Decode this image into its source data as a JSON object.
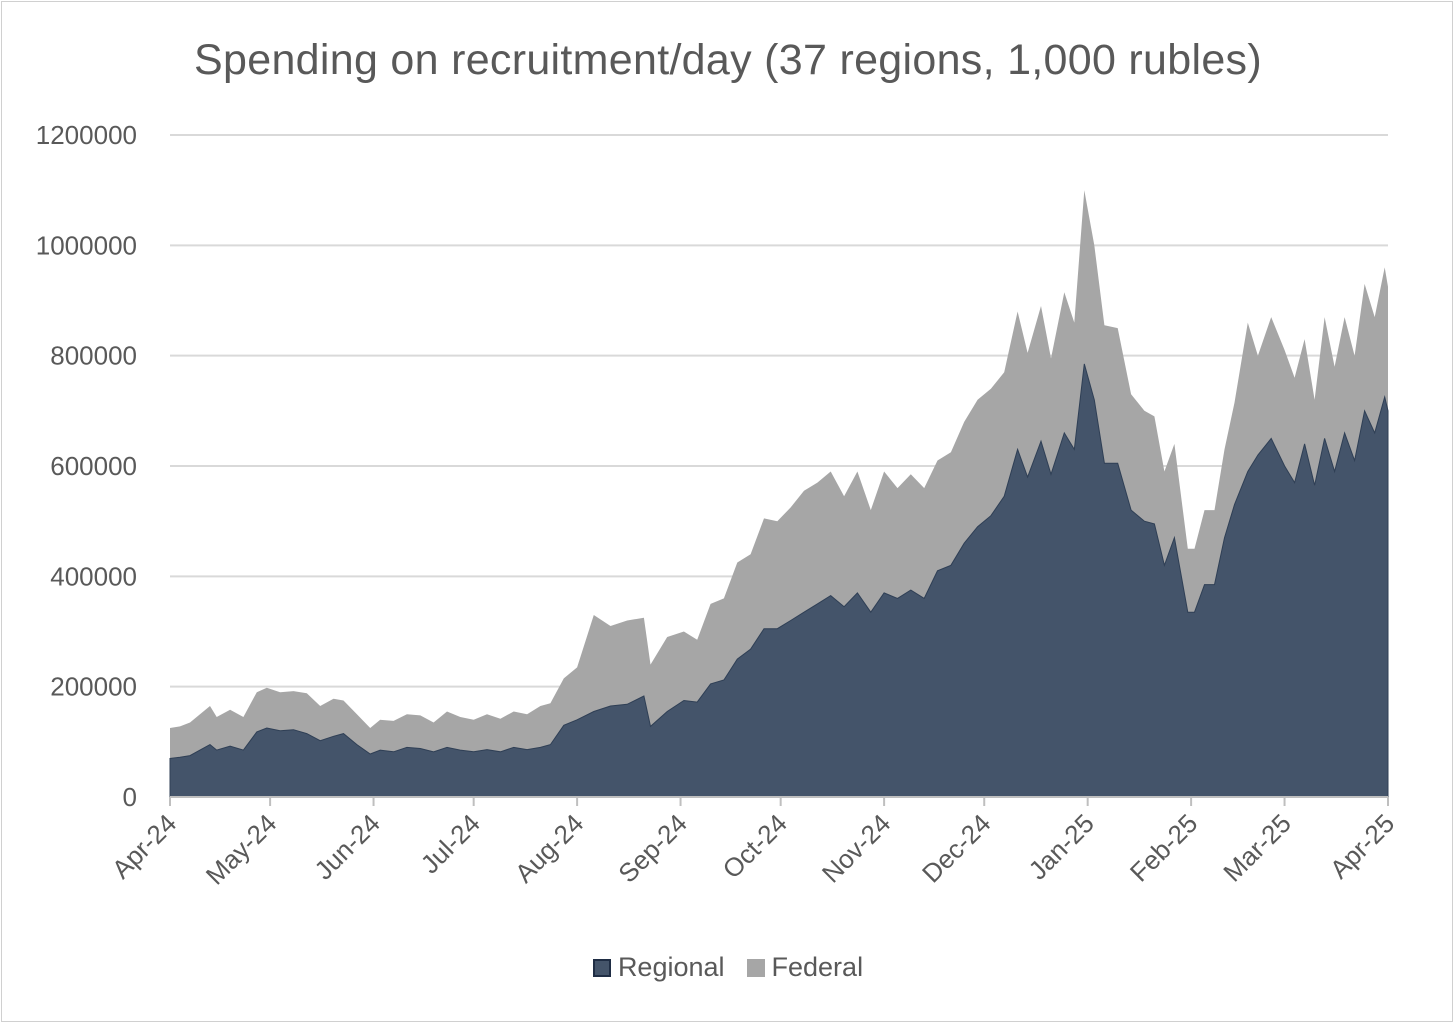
{
  "chart_data": {
    "type": "area",
    "stacked": true,
    "title": "Spending on recruitment/day (37 regions, 1,000 rubles)",
    "xlabel": "",
    "ylabel": "",
    "ylim": [
      0,
      1200000
    ],
    "yticks": [
      0,
      200000,
      400000,
      600000,
      800000,
      1000000,
      1200000
    ],
    "ytick_labels": [
      "0",
      "200000",
      "400000",
      "600000",
      "800000",
      "1000000",
      "1200000"
    ],
    "grid": true,
    "legend_position": "bottom",
    "x_range": [
      "2024-04-01",
      "2025-04-01"
    ],
    "xtick_labels": [
      "Apr-24",
      "May-24",
      "Jun-24",
      "Jul-24",
      "Aug-24",
      "Sep-24",
      "Oct-24",
      "Nov-24",
      "Dec-24",
      "Jan-25",
      "Feb-25",
      "Mar-25",
      "Apr-25"
    ],
    "xtick_dates": [
      "2024-04-01",
      "2024-05-01",
      "2024-06-01",
      "2024-07-01",
      "2024-08-01",
      "2024-09-01",
      "2024-10-01",
      "2024-11-01",
      "2024-12-01",
      "2025-01-01",
      "2025-02-01",
      "2025-03-01",
      "2025-04-01"
    ],
    "series": [
      {
        "name": "Regional",
        "color": "#44546a",
        "points": [
          [
            "2024-04-01",
            70000
          ],
          [
            "2024-04-04",
            72000
          ],
          [
            "2024-04-07",
            75000
          ],
          [
            "2024-04-10",
            85000
          ],
          [
            "2024-04-13",
            95000
          ],
          [
            "2024-04-15",
            85000
          ],
          [
            "2024-04-19",
            92000
          ],
          [
            "2024-04-23",
            85000
          ],
          [
            "2024-04-27",
            118000
          ],
          [
            "2024-04-30",
            125000
          ],
          [
            "2024-05-04",
            120000
          ],
          [
            "2024-05-08",
            122000
          ],
          [
            "2024-05-12",
            115000
          ],
          [
            "2024-05-16",
            102000
          ],
          [
            "2024-05-20",
            110000
          ],
          [
            "2024-05-23",
            115000
          ],
          [
            "2024-05-27",
            95000
          ],
          [
            "2024-05-31",
            78000
          ],
          [
            "2024-06-03",
            85000
          ],
          [
            "2024-06-07",
            82000
          ],
          [
            "2024-06-11",
            90000
          ],
          [
            "2024-06-15",
            88000
          ],
          [
            "2024-06-19",
            82000
          ],
          [
            "2024-06-23",
            90000
          ],
          [
            "2024-06-27",
            85000
          ],
          [
            "2024-07-01",
            82000
          ],
          [
            "2024-07-05",
            86000
          ],
          [
            "2024-07-09",
            82000
          ],
          [
            "2024-07-13",
            90000
          ],
          [
            "2024-07-17",
            86000
          ],
          [
            "2024-07-21",
            90000
          ],
          [
            "2024-07-24",
            95000
          ],
          [
            "2024-07-28",
            130000
          ],
          [
            "2024-08-01",
            140000
          ],
          [
            "2024-08-06",
            155000
          ],
          [
            "2024-08-11",
            165000
          ],
          [
            "2024-08-16",
            168000
          ],
          [
            "2024-08-21",
            183000
          ],
          [
            "2024-08-23",
            128000
          ],
          [
            "2024-08-28",
            155000
          ],
          [
            "2024-09-02",
            175000
          ],
          [
            "2024-09-06",
            172000
          ],
          [
            "2024-09-10",
            205000
          ],
          [
            "2024-09-14",
            212000
          ],
          [
            "2024-09-18",
            250000
          ],
          [
            "2024-09-22",
            268000
          ],
          [
            "2024-09-26",
            305000
          ],
          [
            "2024-09-30",
            305000
          ],
          [
            "2024-10-04",
            320000
          ],
          [
            "2024-10-08",
            335000
          ],
          [
            "2024-10-12",
            350000
          ],
          [
            "2024-10-16",
            365000
          ],
          [
            "2024-10-20",
            345000
          ],
          [
            "2024-10-24",
            370000
          ],
          [
            "2024-10-28",
            335000
          ],
          [
            "2024-11-01",
            370000
          ],
          [
            "2024-11-05",
            360000
          ],
          [
            "2024-11-09",
            375000
          ],
          [
            "2024-11-13",
            360000
          ],
          [
            "2024-11-17",
            410000
          ],
          [
            "2024-11-21",
            420000
          ],
          [
            "2024-11-25",
            460000
          ],
          [
            "2024-11-29",
            490000
          ],
          [
            "2024-12-03",
            510000
          ],
          [
            "2024-12-07",
            545000
          ],
          [
            "2024-12-11",
            630000
          ],
          [
            "2024-12-14",
            580000
          ],
          [
            "2024-12-18",
            645000
          ],
          [
            "2024-12-21",
            585000
          ],
          [
            "2024-12-25",
            660000
          ],
          [
            "2024-12-28",
            630000
          ],
          [
            "2024-12-31",
            785000
          ],
          [
            "2025-01-03",
            720000
          ],
          [
            "2025-01-06",
            605000
          ],
          [
            "2025-01-10",
            605000
          ],
          [
            "2025-01-14",
            520000
          ],
          [
            "2025-01-18",
            500000
          ],
          [
            "2025-01-21",
            495000
          ],
          [
            "2025-01-24",
            420000
          ],
          [
            "2025-01-27",
            470000
          ],
          [
            "2025-01-31",
            335000
          ],
          [
            "2025-02-02",
            335000
          ],
          [
            "2025-02-05",
            385000
          ],
          [
            "2025-02-08",
            385000
          ],
          [
            "2025-02-11",
            470000
          ],
          [
            "2025-02-14",
            530000
          ],
          [
            "2025-02-18",
            590000
          ],
          [
            "2025-02-21",
            620000
          ],
          [
            "2025-02-25",
            650000
          ],
          [
            "2025-03-01",
            600000
          ],
          [
            "2025-03-04",
            570000
          ],
          [
            "2025-03-07",
            640000
          ],
          [
            "2025-03-10",
            565000
          ],
          [
            "2025-03-13",
            650000
          ],
          [
            "2025-03-16",
            590000
          ],
          [
            "2025-03-19",
            660000
          ],
          [
            "2025-03-22",
            610000
          ],
          [
            "2025-03-25",
            700000
          ],
          [
            "2025-03-28",
            660000
          ],
          [
            "2025-03-31",
            725000
          ],
          [
            "2025-04-01",
            700000
          ]
        ]
      },
      {
        "name": "Federal",
        "color": "#a6a6a6",
        "points": [
          [
            "2024-04-01",
            125000
          ],
          [
            "2024-04-04",
            128000
          ],
          [
            "2024-04-07",
            135000
          ],
          [
            "2024-04-10",
            150000
          ],
          [
            "2024-04-13",
            165000
          ],
          [
            "2024-04-15",
            145000
          ],
          [
            "2024-04-19",
            158000
          ],
          [
            "2024-04-23",
            145000
          ],
          [
            "2024-04-27",
            190000
          ],
          [
            "2024-04-30",
            198000
          ],
          [
            "2024-05-04",
            190000
          ],
          [
            "2024-05-08",
            192000
          ],
          [
            "2024-05-12",
            188000
          ],
          [
            "2024-05-16",
            165000
          ],
          [
            "2024-05-20",
            178000
          ],
          [
            "2024-05-23",
            175000
          ],
          [
            "2024-05-27",
            150000
          ],
          [
            "2024-05-31",
            125000
          ],
          [
            "2024-06-03",
            140000
          ],
          [
            "2024-06-07",
            138000
          ],
          [
            "2024-06-11",
            150000
          ],
          [
            "2024-06-15",
            148000
          ],
          [
            "2024-06-19",
            135000
          ],
          [
            "2024-06-23",
            155000
          ],
          [
            "2024-06-27",
            145000
          ],
          [
            "2024-07-01",
            140000
          ],
          [
            "2024-07-05",
            150000
          ],
          [
            "2024-07-09",
            142000
          ],
          [
            "2024-07-13",
            155000
          ],
          [
            "2024-07-17",
            150000
          ],
          [
            "2024-07-21",
            165000
          ],
          [
            "2024-07-24",
            170000
          ],
          [
            "2024-07-28",
            215000
          ],
          [
            "2024-08-01",
            235000
          ],
          [
            "2024-08-06",
            330000
          ],
          [
            "2024-08-11",
            310000
          ],
          [
            "2024-08-16",
            320000
          ],
          [
            "2024-08-21",
            325000
          ],
          [
            "2024-08-23",
            240000
          ],
          [
            "2024-08-28",
            290000
          ],
          [
            "2024-09-02",
            300000
          ],
          [
            "2024-09-06",
            285000
          ],
          [
            "2024-09-10",
            350000
          ],
          [
            "2024-09-14",
            360000
          ],
          [
            "2024-09-18",
            425000
          ],
          [
            "2024-09-22",
            440000
          ],
          [
            "2024-09-26",
            505000
          ],
          [
            "2024-09-30",
            500000
          ],
          [
            "2024-10-04",
            525000
          ],
          [
            "2024-10-08",
            555000
          ],
          [
            "2024-10-12",
            570000
          ],
          [
            "2024-10-16",
            590000
          ],
          [
            "2024-10-20",
            545000
          ],
          [
            "2024-10-24",
            590000
          ],
          [
            "2024-10-28",
            520000
          ],
          [
            "2024-11-01",
            590000
          ],
          [
            "2024-11-05",
            560000
          ],
          [
            "2024-11-09",
            585000
          ],
          [
            "2024-11-13",
            560000
          ],
          [
            "2024-11-17",
            610000
          ],
          [
            "2024-11-21",
            625000
          ],
          [
            "2024-11-25",
            680000
          ],
          [
            "2024-11-29",
            720000
          ],
          [
            "2024-12-03",
            740000
          ],
          [
            "2024-12-07",
            770000
          ],
          [
            "2024-12-11",
            880000
          ],
          [
            "2024-12-14",
            805000
          ],
          [
            "2024-12-18",
            890000
          ],
          [
            "2024-12-21",
            795000
          ],
          [
            "2024-12-25",
            915000
          ],
          [
            "2024-12-28",
            860000
          ],
          [
            "2024-12-31",
            1100000
          ],
          [
            "2025-01-03",
            1000000
          ],
          [
            "2025-01-06",
            855000
          ],
          [
            "2025-01-10",
            850000
          ],
          [
            "2025-01-14",
            730000
          ],
          [
            "2025-01-18",
            700000
          ],
          [
            "2025-01-21",
            690000
          ],
          [
            "2025-01-24",
            590000
          ],
          [
            "2025-01-27",
            640000
          ],
          [
            "2025-01-31",
            450000
          ],
          [
            "2025-02-02",
            450000
          ],
          [
            "2025-02-05",
            520000
          ],
          [
            "2025-02-08",
            520000
          ],
          [
            "2025-02-11",
            630000
          ],
          [
            "2025-02-14",
            715000
          ],
          [
            "2025-02-18",
            860000
          ],
          [
            "2025-02-21",
            800000
          ],
          [
            "2025-02-25",
            870000
          ],
          [
            "2025-03-01",
            810000
          ],
          [
            "2025-03-04",
            760000
          ],
          [
            "2025-03-07",
            830000
          ],
          [
            "2025-03-10",
            720000
          ],
          [
            "2025-03-13",
            870000
          ],
          [
            "2025-03-16",
            780000
          ],
          [
            "2025-03-19",
            870000
          ],
          [
            "2025-03-22",
            800000
          ],
          [
            "2025-03-25",
            930000
          ],
          [
            "2025-03-28",
            870000
          ],
          [
            "2025-03-31",
            960000
          ],
          [
            "2025-04-01",
            925000
          ]
        ]
      }
    ]
  }
}
